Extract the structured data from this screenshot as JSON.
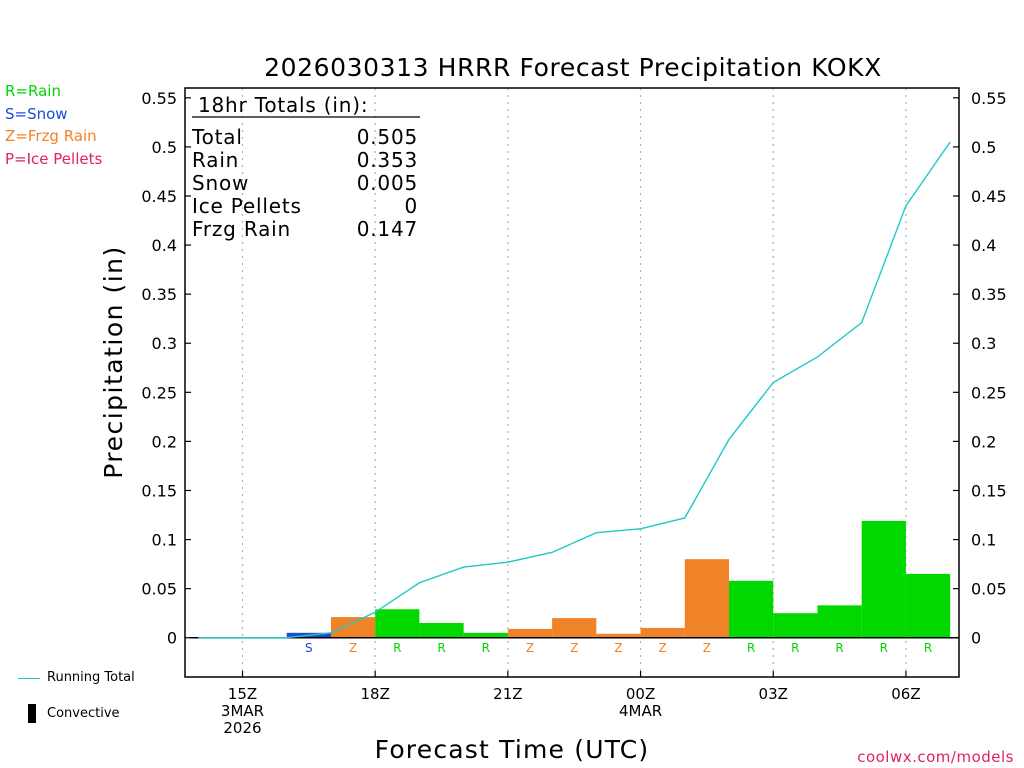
{
  "colors": {
    "rain": "#00d800",
    "snow": "#1a4cdb",
    "frzg": "#f08228",
    "ice": "#e0206a",
    "running": "#20c8c8",
    "site": "#e0206a"
  },
  "ptype_legend": [
    {
      "label": "R=Rain",
      "color": "#00d800"
    },
    {
      "label": "S=Snow",
      "color": "#1a4cdb"
    },
    {
      "label": "Z=Frzg Rain",
      "color": "#f08228"
    },
    {
      "label": "P=Ice Pellets",
      "color": "#e0206a"
    }
  ],
  "side_legend": {
    "running_label": "Running Total",
    "convective_label": "Convective"
  },
  "site_label": "coolwx.com/models",
  "totals": {
    "header": "18hr Totals (in):",
    "rows": [
      {
        "label": "Total",
        "value": "0.505"
      },
      {
        "label": "Rain",
        "value": "0.353"
      },
      {
        "label": "Snow",
        "value": "0.005"
      },
      {
        "label": "Ice Pellets",
        "value": "0"
      },
      {
        "label": "Frzg Rain",
        "value": "0.147"
      }
    ]
  },
  "chart_data": {
    "type": "bar",
    "title": "2026030313 HRRR Forecast Precipitation KOKX",
    "xlabel": "Forecast Time (UTC)",
    "ylabel": "Precipitation (in)",
    "ylim": [
      -0.04,
      0.56
    ],
    "yticks": [
      0,
      0.05,
      0.1,
      0.15,
      0.2,
      0.25,
      0.3,
      0.35,
      0.4,
      0.45,
      0.5,
      0.55
    ],
    "ytick_labels": [
      "0",
      "0.05",
      "0.1",
      "0.15",
      "0.2",
      "0.25",
      "0.3",
      "0.35",
      "0.4",
      "0.45",
      "0.5",
      "0.55"
    ],
    "x_range_hours": [
      13.7,
      31.2
    ],
    "xticks": [
      {
        "hour": 15,
        "lines": [
          "15Z",
          "3MAR",
          "2026"
        ]
      },
      {
        "hour": 18,
        "lines": [
          "18Z"
        ]
      },
      {
        "hour": 21,
        "lines": [
          "21Z"
        ]
      },
      {
        "hour": 24,
        "lines": [
          "00Z",
          "4MAR"
        ]
      },
      {
        "hour": 27,
        "lines": [
          "03Z"
        ]
      },
      {
        "hour": 30,
        "lines": [
          "06Z"
        ]
      }
    ],
    "bars": [
      {
        "hour": 14,
        "value": 0,
        "type": "",
        "label": ""
      },
      {
        "hour": 15,
        "value": 0,
        "type": "",
        "label": ""
      },
      {
        "hour": 16,
        "value": 0,
        "type": "",
        "label": ""
      },
      {
        "hour": 17,
        "value": 0.005,
        "type": "snow",
        "label": "S"
      },
      {
        "hour": 18,
        "value": 0.021,
        "type": "frzg",
        "label": "Z"
      },
      {
        "hour": 19,
        "value": 0.029,
        "type": "rain",
        "label": "R"
      },
      {
        "hour": 20,
        "value": 0.015,
        "type": "rain",
        "label": "R"
      },
      {
        "hour": 21,
        "value": 0.005,
        "type": "rain",
        "label": "R"
      },
      {
        "hour": 22,
        "value": 0.009,
        "type": "frzg",
        "label": "Z"
      },
      {
        "hour": 23,
        "value": 0.02,
        "type": "frzg",
        "label": "Z"
      },
      {
        "hour": 24,
        "value": 0.004,
        "type": "frzg",
        "label": "Z"
      },
      {
        "hour": 25,
        "value": 0.01,
        "type": "frzg",
        "label": "Z"
      },
      {
        "hour": 26,
        "value": 0.08,
        "type": "frzg",
        "label": "Z"
      },
      {
        "hour": 27,
        "value": 0.058,
        "type": "rain",
        "label": "R"
      },
      {
        "hour": 28,
        "value": 0.025,
        "type": "rain",
        "label": "R"
      },
      {
        "hour": 29,
        "value": 0.033,
        "type": "rain",
        "label": "R"
      },
      {
        "hour": 30,
        "value": 0.119,
        "type": "rain",
        "label": "R"
      },
      {
        "hour": 31,
        "value": 0.065,
        "type": "rain",
        "label": "R"
      }
    ],
    "series": [
      {
        "name": "Running Total",
        "x": [
          14,
          15,
          16,
          17,
          18,
          19,
          20,
          21,
          22,
          23,
          24,
          25,
          26,
          27,
          28,
          29,
          30,
          31
        ],
        "values": [
          0,
          0,
          0,
          0.005,
          0.026,
          0.056,
          0.072,
          0.077,
          0.087,
          0.107,
          0.111,
          0.122,
          0.202,
          0.26,
          0.286,
          0.321,
          0.44,
          0.505
        ]
      }
    ]
  }
}
